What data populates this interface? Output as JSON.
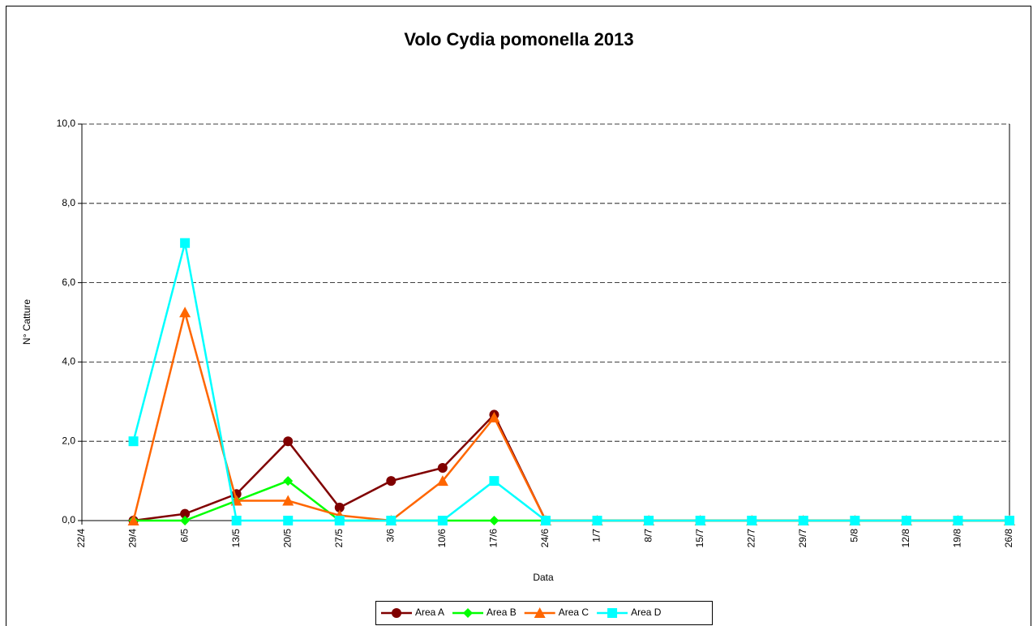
{
  "chart_data": {
    "type": "line",
    "title": "Volo Cydia pomonella 2013",
    "x_label": "Data",
    "y_label": "N° Catture",
    "categories": [
      "22/4",
      "29/4",
      "6/5",
      "13/5",
      "20/5",
      "27/5",
      "3/6",
      "10/6",
      "17/6",
      "24/6",
      "1/7",
      "8/7",
      "15/7",
      "22/7",
      "29/7",
      "5/8",
      "12/8",
      "19/8",
      "26/8"
    ],
    "series": [
      {
        "name": "Area A",
        "color": "#800000",
        "marker": "circle",
        "values": [
          null,
          0,
          0.17,
          0.67,
          2.0,
          0.33,
          1.0,
          1.33,
          2.67,
          0,
          0,
          0,
          0,
          0,
          0,
          0,
          0,
          0,
          0
        ]
      },
      {
        "name": "Area B",
        "color": "#00ff00",
        "marker": "diamond",
        "values": [
          null,
          0,
          0,
          0.5,
          1.0,
          0,
          0,
          0,
          0,
          0,
          0,
          0,
          0,
          0,
          0,
          0,
          0,
          0,
          0
        ]
      },
      {
        "name": "Area C",
        "color": "#ff6600",
        "marker": "triangle",
        "values": [
          null,
          0,
          5.25,
          0.5,
          0.5,
          0.13,
          0,
          1.0,
          2.6,
          0,
          0,
          0,
          0,
          0,
          0,
          0,
          0,
          0,
          0
        ]
      },
      {
        "name": "Area D",
        "color": "#00ffff",
        "marker": "square",
        "values": [
          null,
          2.0,
          7.0,
          0,
          0,
          0,
          0,
          0,
          1.0,
          0,
          0,
          0,
          0,
          0,
          0,
          0,
          0,
          0,
          0
        ]
      }
    ],
    "ylim": [
      0,
      10
    ],
    "yticks": [
      {
        "value": 0,
        "label": "0,0"
      },
      {
        "value": 2,
        "label": "2,0"
      },
      {
        "value": 4,
        "label": "4,0"
      },
      {
        "value": 6,
        "label": "6,0"
      },
      {
        "value": 8,
        "label": "8,0"
      },
      {
        "value": 10,
        "label": "10,0"
      }
    ],
    "grid": true,
    "legend": "bottom"
  }
}
